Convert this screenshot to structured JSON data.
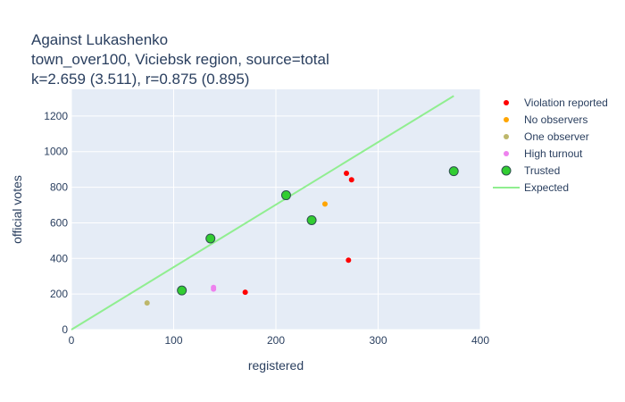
{
  "chart_data": {
    "type": "scatter",
    "title_lines": [
      "Against Lukashenko",
      "town_over100, Viciebsk region, source=total",
      "k=2.659 (3.511), r=0.875 (0.895)"
    ],
    "xlabel": "registered",
    "ylabel": "official votes",
    "xlim": [
      0,
      400
    ],
    "ylim": [
      0,
      1350
    ],
    "xticks": [
      0,
      100,
      200,
      300,
      400
    ],
    "yticks": [
      0,
      200,
      400,
      600,
      800,
      1000,
      1200
    ],
    "grid": true,
    "legend_position": "right",
    "colors": {
      "plot_bg": "#e5ecf6",
      "violation": "#ff0000",
      "no_observers": "#ffa500",
      "one_observer": "#bdb76b",
      "high_turnout": "#ee82ee",
      "trusted": "#32cd32",
      "expected": "#90ee90"
    },
    "series": [
      {
        "name": "Violation reported",
        "color": "#ff0000",
        "marker": "small",
        "points": [
          [
            170,
            210
          ],
          [
            269,
            878
          ],
          [
            274,
            842
          ],
          [
            271,
            390
          ]
        ]
      },
      {
        "name": "No observers",
        "color": "#ffa500",
        "marker": "small",
        "points": [
          [
            248,
            706
          ]
        ]
      },
      {
        "name": "One observer",
        "color": "#bdb76b",
        "marker": "small",
        "points": [
          [
            74,
            150
          ]
        ]
      },
      {
        "name": "High turnout",
        "color": "#ee82ee",
        "marker": "small",
        "points": [
          [
            139,
            237
          ],
          [
            139,
            228
          ]
        ]
      },
      {
        "name": "Trusted",
        "color": "#32cd32",
        "marker": "large",
        "points": [
          [
            108,
            220
          ],
          [
            136,
            512
          ],
          [
            210,
            755
          ],
          [
            235,
            615
          ],
          [
            374,
            890
          ]
        ]
      },
      {
        "name": "Expected",
        "color": "#90ee90",
        "marker": "line",
        "points": [
          [
            0,
            0
          ],
          [
            374,
            1313
          ]
        ]
      }
    ]
  }
}
